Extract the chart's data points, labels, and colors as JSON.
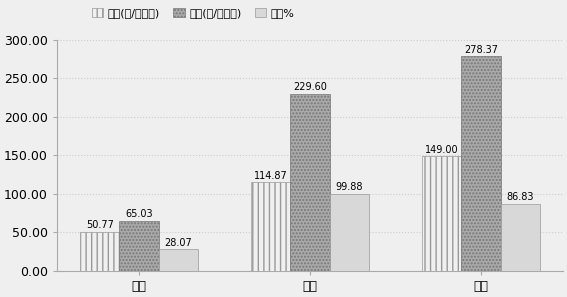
{
  "categories": [
    "七月",
    "八月",
    "九月"
  ],
  "series": [
    {
      "name": "对照(克/平方米)",
      "values": [
        50.77,
        114.87,
        149.0
      ],
      "hatch": "|||",
      "facecolor": "#f0f0f0",
      "edgecolor": "#999999"
    },
    {
      "name": "封育(克/平方米)",
      "values": [
        65.03,
        229.6,
        278.37
      ],
      "hatch": ".....",
      "facecolor": "#aaaaaa",
      "edgecolor": "#777777"
    },
    {
      "name": "提高%",
      "values": [
        28.07,
        99.88,
        86.83
      ],
      "hatch": "===",
      "facecolor": "#d8d8d8",
      "edgecolor": "#999999"
    }
  ],
  "ylim": [
    0,
    300
  ],
  "yticks": [
    0,
    50,
    100,
    150,
    200,
    250,
    300
  ],
  "ytick_labels": [
    "0.00",
    "50.00",
    "100.00",
    "150.00",
    "200.00",
    "250.00",
    "300.00"
  ],
  "bar_width": 0.23,
  "background_color": "#f0eff0",
  "grid_color": "#cccccc",
  "label_fontsize": 7,
  "axis_fontsize": 9,
  "legend_fontsize": 8
}
